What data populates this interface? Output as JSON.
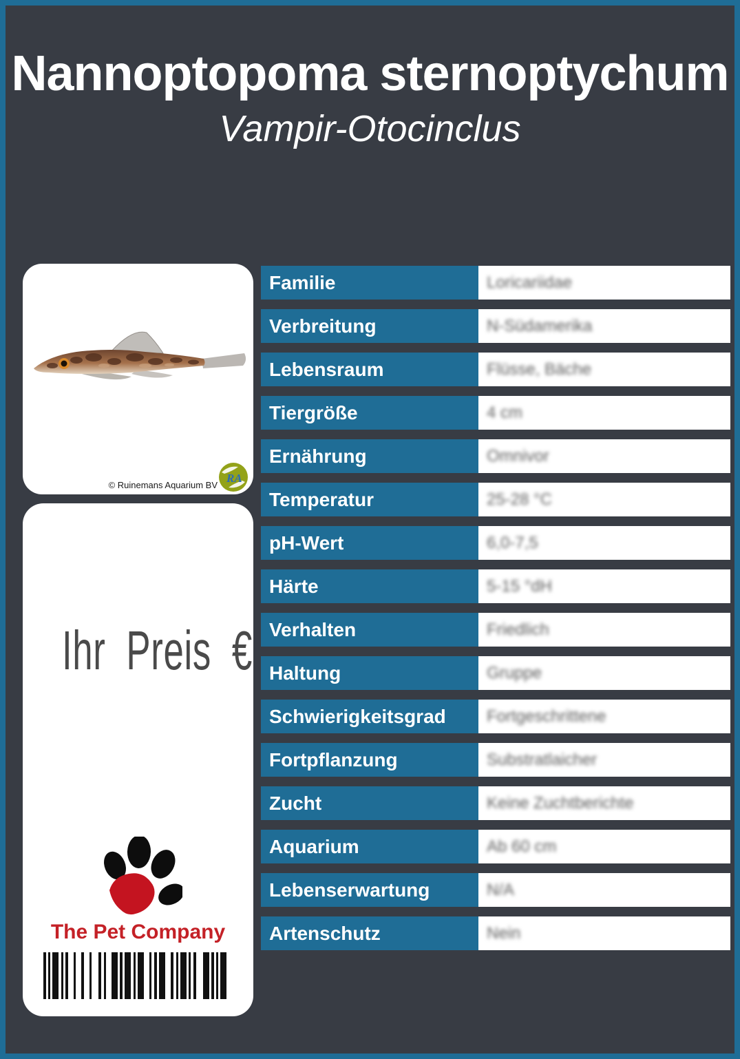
{
  "header": {
    "title": "Nannoptopoma sternoptychum",
    "subtitle": "Vampir-Otocinclus"
  },
  "colors": {
    "frame_teal": "#1f6d96",
    "background": "#383c44",
    "brand_red": "#c42127",
    "price_text_gray": "#4a4a4a",
    "label_cell_teal": "#1f6d96",
    "value_cell_white": "#ffffff"
  },
  "photo_card": {
    "fish_photo_icon": "fish-photo",
    "copyright": "© Ruinemans Aquarium BV",
    "logo_text": "RA"
  },
  "price_card": {
    "price_label": "Ihr Preis €",
    "brand": "The Pet Company",
    "paw_icon": "paw-print-icon",
    "barcode_bars": [
      4,
      3,
      3,
      3,
      9,
      4,
      3,
      3,
      4,
      8,
      3,
      8,
      4,
      8,
      3,
      10,
      4,
      4,
      3,
      8,
      9,
      3,
      4,
      3,
      9,
      4,
      3,
      3,
      9,
      8,
      3,
      4,
      4,
      3,
      9,
      8,
      4,
      4,
      3,
      3,
      9,
      3,
      3,
      4,
      4,
      10,
      9,
      3,
      4,
      3,
      3,
      3,
      9
    ]
  },
  "table": {
    "rows": [
      {
        "label": "Familie",
        "value": "Loricariidae"
      },
      {
        "label": "Verbreitung",
        "value": "N-Südamerika"
      },
      {
        "label": "Lebensraum",
        "value": "Flüsse, Bäche"
      },
      {
        "label": "Tiergröße",
        "value": "4 cm"
      },
      {
        "label": "Ernährung",
        "value": "Omnivor"
      },
      {
        "label": "Temperatur",
        "value": "25-28 °C"
      },
      {
        "label": "pH-Wert",
        "value": "6,0-7,5"
      },
      {
        "label": "Härte",
        "value": "5-15 °dH"
      },
      {
        "label": "Verhalten",
        "value": "Friedlich"
      },
      {
        "label": "Haltung",
        "value": "Gruppe"
      },
      {
        "label": "Schwierigkeitsgrad",
        "value": "Fortgeschrittene"
      },
      {
        "label": "Fortpflanzung",
        "value": "Substratlaicher"
      },
      {
        "label": "Zucht",
        "value": "Keine Zuchtberichte"
      },
      {
        "label": "Aquarium",
        "value": "Ab 60 cm"
      },
      {
        "label": "Lebenserwartung",
        "value": "N/A"
      },
      {
        "label": "Artenschutz",
        "value": "Nein"
      }
    ]
  }
}
